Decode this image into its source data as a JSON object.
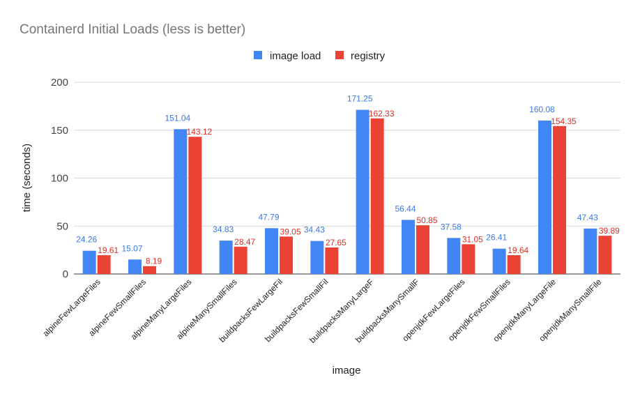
{
  "chart_data": {
    "type": "bar",
    "title": "Containerd Initial Loads (less is better)",
    "xlabel": "image",
    "ylabel": "time (seconds)",
    "ylim": [
      0,
      200
    ],
    "yticks": [
      0,
      50,
      100,
      150,
      200
    ],
    "grid": true,
    "legend_position": "top-center",
    "categories": [
      "alpineFewLargeFiles",
      "alpineFewSmallFiles",
      "alpineManyLargeFiles",
      "alpineManySmallFiles",
      "buildpacksFewLargeFil",
      "buildpacksFewSmallFil",
      "buildpacksManyLargeF",
      "buildpacksManySmallF",
      "openjdkFewLargeFiles",
      "openjdkFewSmallFiles",
      "openjdkManyLargeFile",
      "openjdkManySmallFile"
    ],
    "series": [
      {
        "name": "image load",
        "color": "#4285f4",
        "values": [
          24.26,
          15.07,
          151.04,
          34.83,
          47.79,
          34.43,
          171.25,
          56.44,
          37.58,
          26.41,
          160.08,
          47.43
        ]
      },
      {
        "name": "registry",
        "color": "#ea4335",
        "values": [
          19.61,
          8.19,
          143.12,
          28.47,
          39.05,
          27.65,
          162.33,
          50.85,
          31.05,
          19.64,
          154.35,
          39.89
        ]
      }
    ]
  }
}
